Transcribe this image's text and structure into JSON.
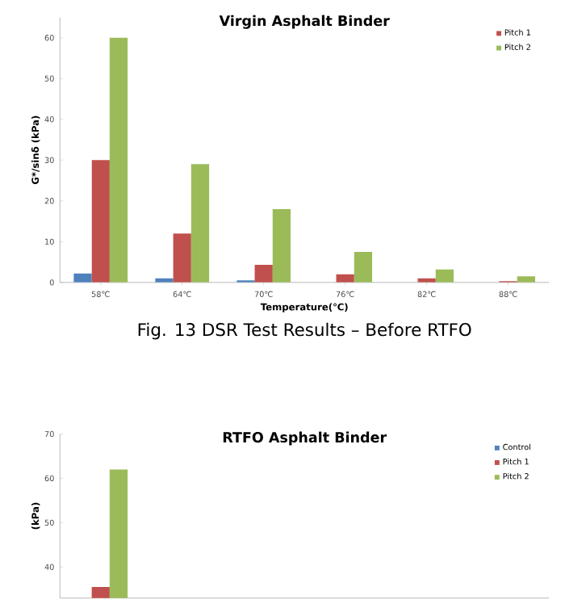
{
  "chart_data": [
    {
      "type": "bar",
      "title": "Virgin Asphalt Binder",
      "xlabel": "Temperature(℃)",
      "ylabel": "G*/sinδ (kPa)",
      "categories": [
        "58℃",
        "64℃",
        "70℃",
        "76℃",
        "82℃",
        "88℃"
      ],
      "series": [
        {
          "color": "#4f81bd",
          "values": [
            2.2,
            1.0,
            0.5,
            0,
            0,
            0
          ]
        },
        {
          "name": "Pitch 1",
          "color": "#c0504d",
          "values": [
            30,
            12,
            4.3,
            2,
            1,
            0.3
          ]
        },
        {
          "name": "Pitch 2",
          "color": "#9bbb59",
          "values": [
            60,
            29,
            18,
            7.5,
            3.2,
            1.5
          ]
        }
      ],
      "ylim": [
        0,
        65
      ],
      "yticks": [
        0,
        10,
        20,
        30,
        40,
        50,
        60
      ],
      "legend": "top right",
      "annotations": [
        "Fig. 13 DSR Test Results – Before RTFO"
      ]
    },
    {
      "type": "bar",
      "title": "RTFO Asphalt Binder",
      "ylabel": "(kPa)",
      "categories": [
        null,
        null,
        null,
        null,
        null,
        null
      ],
      "series": [
        {
          "name": "Control",
          "color": "#4f81bd",
          "values": [
            null,
            null,
            null,
            null,
            null,
            null
          ]
        },
        {
          "name": "Pitch 1",
          "color": "#c0504d",
          "values": [
            35.5,
            null,
            null,
            null,
            null,
            null
          ]
        },
        {
          "name": "Pitch 2",
          "color": "#9bbb59",
          "values": [
            62,
            null,
            null,
            null,
            null,
            null
          ]
        }
      ],
      "ylim": [
        33,
        70
      ],
      "yticks": [
        40,
        50,
        60,
        70
      ],
      "legend": "top right",
      "tick_labels": "y"
    }
  ]
}
